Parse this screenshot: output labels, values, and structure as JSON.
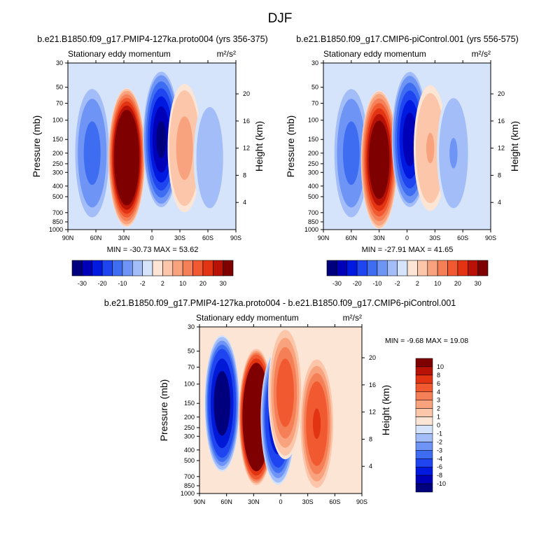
{
  "figure_title": "DJF",
  "colors": {
    "cb1": [
      "#00007f",
      "#0000b8",
      "#0019e0",
      "#1e45f0",
      "#3f6df2",
      "#6e94f5",
      "#a3bdf8",
      "#d6e4fb",
      "#fde5d6",
      "#fbc6aa",
      "#f8a37e",
      "#f57f56",
      "#f15a30",
      "#e23413",
      "#b81106",
      "#7f0000"
    ],
    "cb2": [
      "#00007f",
      "#0019d6",
      "#1e45f0",
      "#3f6df2",
      "#6e94f5",
      "#a3bdf8",
      "#d6e4fb",
      "#fde5d6",
      "#fbc6aa",
      "#f8a37e",
      "#f57f56",
      "#f15a30",
      "#e23413",
      "#7f0000"
    ]
  },
  "chart_data": [
    {
      "type": "heatmap",
      "title": "b.e21.B1850.f09_g17.PMIP4-127ka.proto004 (yrs 356-375)",
      "subtitle_left": "Stationary eddy momentum",
      "units": "m²/s²",
      "ylabel": "Pressure (mb)",
      "ylabel_right": "Height (km)",
      "x_ticks": [
        "90N",
        "60N",
        "30N",
        "0",
        "30S",
        "60S",
        "90S"
      ],
      "y_ticks": [
        "30",
        "50",
        "70",
        "100",
        "150",
        "200",
        "250",
        "300",
        "400",
        "500",
        "700",
        "850",
        "1000"
      ],
      "y_ticks_right": [
        "20",
        "16",
        "12",
        "8",
        "4"
      ],
      "min_max": "MIN = -30.73  MAX =  53.62",
      "colorbar_labels": [
        "-30",
        "-20",
        "-10",
        "-2",
        "2",
        "10",
        "20",
        "30"
      ],
      "features": [
        {
          "lat": 64,
          "p": 200,
          "value": -12
        },
        {
          "lat": 27,
          "p": 220,
          "value": 53.62
        },
        {
          "lat": -10,
          "p": 150,
          "value": -30.73
        },
        {
          "lat": -35,
          "p": 180,
          "value": 6
        },
        {
          "lat": -62,
          "p": 220,
          "value": -4
        }
      ]
    },
    {
      "type": "heatmap",
      "title": "b.e21.B1850.f09_g17.CMIP6-piControl.001 (yrs 556-575)",
      "subtitle_left": "Stationary eddy momentum",
      "units": "m²/s²",
      "ylabel": "Pressure (mb)",
      "ylabel_right": "Height (km)",
      "x_ticks": [
        "90N",
        "60N",
        "30N",
        "0",
        "30S",
        "60S",
        "90S"
      ],
      "y_ticks": [
        "30",
        "50",
        "70",
        "100",
        "150",
        "200",
        "250",
        "300",
        "400",
        "500",
        "700",
        "850",
        "1000"
      ],
      "y_ticks_right": [
        "20",
        "16",
        "12",
        "8",
        "4"
      ],
      "min_max": "MIN = -27.91  MAX =  41.65",
      "colorbar_labels": [
        "-30",
        "-20",
        "-10",
        "-2",
        "2",
        "10",
        "20",
        "30"
      ],
      "features": [
        {
          "lat": 60,
          "p": 200,
          "value": -12
        },
        {
          "lat": 30,
          "p": 230,
          "value": 41.65
        },
        {
          "lat": -3,
          "p": 150,
          "value": -27.91
        },
        {
          "lat": -25,
          "p": 180,
          "value": 5
        },
        {
          "lat": -50,
          "p": 200,
          "value": -5
        }
      ]
    },
    {
      "type": "heatmap",
      "title": "b.e21.B1850.f09_g17.PMIP4-127ka.proto004 - b.e21.B1850.f09_g17.CMIP6-piControl.001",
      "subtitle_left": "Stationary eddy momentum",
      "units": "m²/s²",
      "ylabel": "Pressure (mb)",
      "ylabel_right": "Height (km)",
      "x_ticks": [
        "90N",
        "60N",
        "30N",
        "0",
        "30S",
        "60S",
        "90S"
      ],
      "y_ticks": [
        "30",
        "50",
        "70",
        "100",
        "150",
        "200",
        "250",
        "300",
        "400",
        "500",
        "700",
        "850",
        "1000"
      ],
      "y_ticks_right": [
        "20",
        "16",
        "12",
        "8",
        "4"
      ],
      "min_max": "MIN =  -9.68  MAX =  19.08",
      "colorbar_labels": [
        "10",
        "8",
        "6",
        "4",
        "3",
        "2",
        "1",
        "0",
        "-1",
        "-2",
        "-3",
        "-4",
        "-6",
        "-8",
        "-10"
      ],
      "features": [
        {
          "lat": 65,
          "p": 150,
          "value": -9.68
        },
        {
          "lat": 27,
          "p": 200,
          "value": 19.08
        },
        {
          "lat": 3,
          "p": 200,
          "value": -8
        },
        {
          "lat": -5,
          "p": 120,
          "value": 5
        },
        {
          "lat": -40,
          "p": 230,
          "value": 6
        }
      ]
    }
  ]
}
